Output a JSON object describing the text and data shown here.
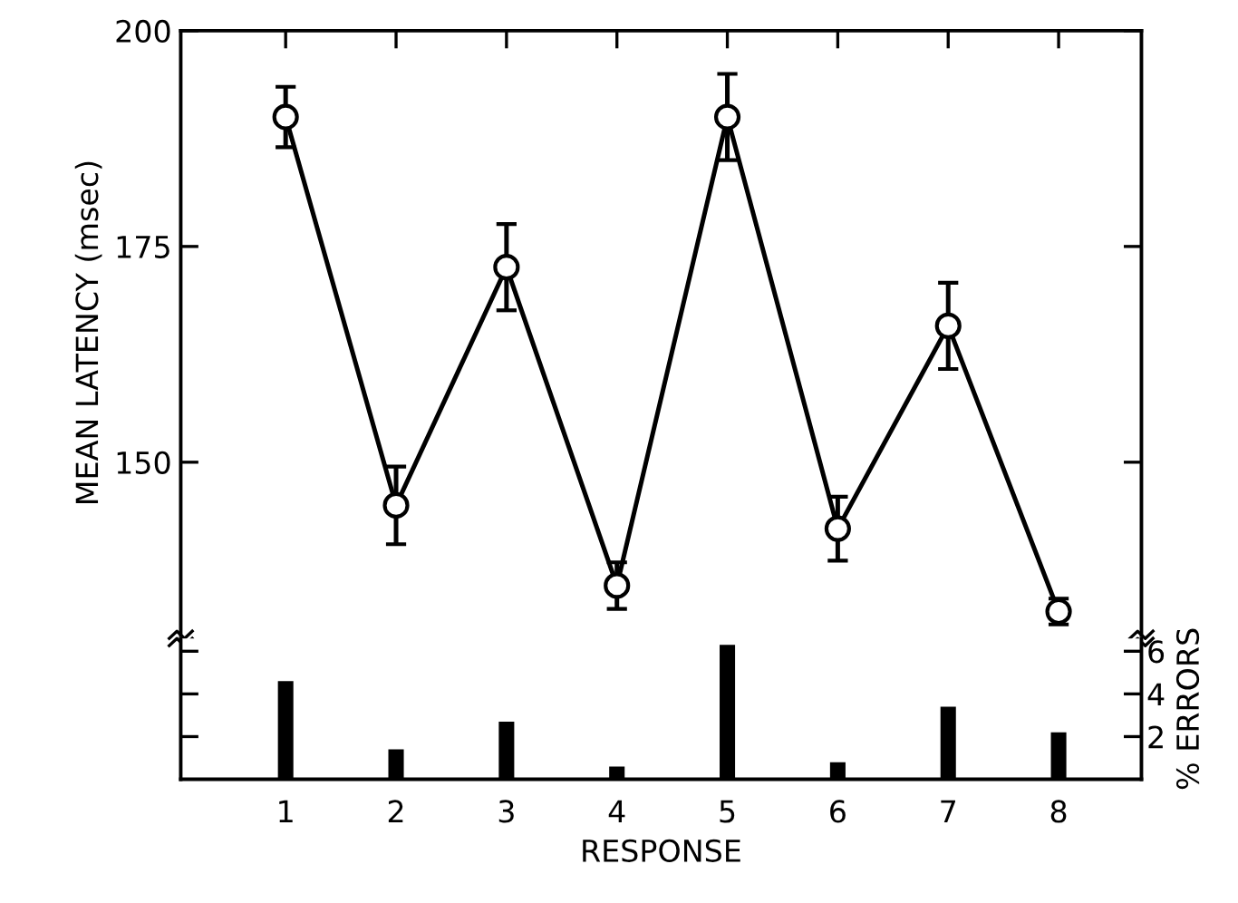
{
  "chart_data": [
    {
      "type": "line",
      "ylabel": "MEAN LATENCY (msec)",
      "categories": [
        "1",
        "2",
        "3",
        "4",
        "5",
        "6",
        "7",
        "8"
      ],
      "series": [
        {
          "color": "#000000",
          "values": [
            190,
            145,
            172.6,
            135.7,
            190,
            142.3,
            165.8,
            132.7
          ],
          "errors": [
            3.5,
            4.5,
            5,
            2.7,
            5,
            3.7,
            5,
            1.5
          ]
        }
      ],
      "ylim": [
        130,
        200
      ],
      "yticks": [
        150,
        175,
        200
      ],
      "marker": "circle",
      "line_style": "solid",
      "tick_labels": "y"
    },
    {
      "type": "bar",
      "xlabel": "RESPONSE",
      "y2label": "% ERRORS",
      "categories": [
        "1",
        "2",
        "3",
        "4",
        "5",
        "6",
        "7",
        "8"
      ],
      "series": [
        {
          "color": "#000000",
          "axis": "y2",
          "values": [
            4.6,
            1.4,
            2.7,
            0.6,
            6.3,
            0.8,
            3.4,
            2.2
          ]
        }
      ],
      "y2lim": [
        0,
        6.6
      ],
      "y2ticks": [
        2,
        4,
        6
      ]
    }
  ]
}
